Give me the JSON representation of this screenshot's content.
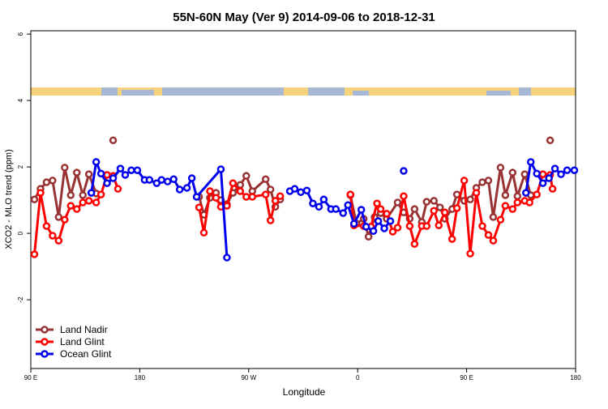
{
  "chart_data": {
    "type": "line",
    "title": "55N-60N May (Ver 9)   2014-09-06 to 2018-12-31",
    "x_label": "Longitude",
    "y_label": "XCO2 - MLO trend (ppm)",
    "xlim": [
      90,
      540
    ],
    "ylim": [
      -4.07,
      6.1
    ],
    "xticks": [
      {
        "value": 90,
        "label": "90 E"
      },
      {
        "value": 180,
        "label": "180"
      },
      {
        "value": 270,
        "label": "90 W"
      },
      {
        "value": 360,
        "label": "0"
      },
      {
        "value": 450,
        "label": "90 E"
      },
      {
        "value": 540,
        "label": "180"
      }
    ],
    "yticks": [
      -2,
      0,
      2,
      4,
      6
    ],
    "legend": "bottom-left",
    "series": [
      {
        "name": "Land Nadir",
        "color": "#993333",
        "x": [
          93,
          98,
          103,
          108,
          113,
          118,
          123,
          128,
          133,
          138,
          144,
          null,
          158,
          null,
          229,
          233,
          238,
          243,
          247,
          252,
          257,
          263,
          268,
          273,
          284,
          288,
          292,
          296,
          null,
          354,
          359,
          365,
          369,
          374,
          379,
          384,
          393,
          398,
          403,
          407,
          413,
          417,
          423,
          428,
          432,
          438,
          442,
          448,
          453,
          458,
          463,
          468,
          472,
          478,
          482,
          488,
          492,
          498,
          503,
          null,
          519
        ],
        "values": [
          1.02,
          1.34,
          1.54,
          1.59,
          0.49,
          1.98,
          1.15,
          1.83,
          1.15,
          1.78,
          1.2,
          null,
          2.8,
          null,
          1.1,
          0.56,
          1.07,
          1.22,
          1.0,
          0.88,
          1.22,
          1.46,
          1.73,
          1.27,
          1.63,
          1.32,
          0.8,
          1.02,
          null,
          1.15,
          0.29,
          0.44,
          -0.1,
          0.49,
          0.61,
          0.44,
          0.93,
          0.63,
          0.44,
          0.73,
          0.34,
          0.95,
          0.98,
          0.78,
          0.44,
          0.73,
          1.17,
          0.98,
          1.02,
          1.37,
          1.54,
          1.59,
          0.49,
          1.98,
          1.15,
          1.83,
          1.12,
          1.78,
          1.15,
          null,
          2.8
        ]
      },
      {
        "name": "Land Glint",
        "color": "#ff0000",
        "x": [
          93,
          98,
          103,
          108,
          113,
          118,
          123,
          128,
          133,
          138,
          144,
          148,
          153,
          158,
          162,
          null,
          229,
          233,
          238,
          243,
          247,
          252,
          257,
          263,
          268,
          273,
          284,
          288,
          292,
          296,
          null,
          354,
          357,
          365,
          371,
          376,
          379,
          384,
          389,
          393,
          398,
          403,
          407,
          413,
          417,
          423,
          427,
          432,
          438,
          442,
          448,
          453,
          458,
          463,
          468,
          472,
          478,
          482,
          488,
          492,
          498,
          502,
          508,
          513,
          519,
          521
        ],
        "values": [
          -0.63,
          1.22,
          0.22,
          -0.07,
          -0.22,
          0.41,
          0.83,
          0.73,
          0.93,
          0.98,
          0.93,
          1.17,
          1.76,
          1.73,
          1.34,
          null,
          0.78,
          0.02,
          1.27,
          1.07,
          0.8,
          0.83,
          1.51,
          1.27,
          1.1,
          1.1,
          1.17,
          0.39,
          0.98,
          1.12,
          null,
          1.17,
          0.24,
          0.22,
          0.2,
          0.9,
          0.73,
          0.59,
          0.05,
          0.17,
          1.12,
          0.22,
          -0.32,
          0.22,
          0.22,
          0.68,
          0.24,
          0.63,
          -0.17,
          0.76,
          1.59,
          -0.61,
          1.22,
          0.22,
          -0.05,
          -0.22,
          0.41,
          0.83,
          0.73,
          0.93,
          0.98,
          0.93,
          1.17,
          1.78,
          1.76,
          1.34
        ]
      },
      {
        "name": "Ocean Glint",
        "color": "#0000ee",
        "x": [
          140,
          144,
          148,
          153,
          158,
          164,
          168,
          173,
          178,
          184,
          188,
          194,
          198,
          203,
          208,
          213,
          219,
          223,
          227,
          247,
          252,
          null,
          304,
          308,
          313,
          318,
          323,
          328,
          332,
          338,
          342,
          348,
          352,
          357,
          363,
          367,
          373,
          377,
          382,
          387,
          null,
          398,
          null,
          499,
          503,
          508,
          513,
          518,
          523,
          528,
          533,
          539
        ],
        "values": [
          1.22,
          2.15,
          1.8,
          1.51,
          1.66,
          1.95,
          1.76,
          1.9,
          1.9,
          1.61,
          1.61,
          1.51,
          1.61,
          1.56,
          1.63,
          1.32,
          1.37,
          1.66,
          1.1,
          1.93,
          -0.73,
          null,
          1.27,
          1.34,
          1.24,
          1.29,
          0.9,
          0.8,
          1.02,
          0.73,
          0.73,
          0.61,
          0.85,
          0.29,
          0.71,
          0.2,
          0.07,
          0.37,
          0.15,
          0.37,
          null,
          1.88,
          null,
          1.22,
          2.15,
          1.8,
          1.51,
          1.66,
          1.95,
          1.78,
          1.9,
          1.9
        ]
      }
    ]
  }
}
